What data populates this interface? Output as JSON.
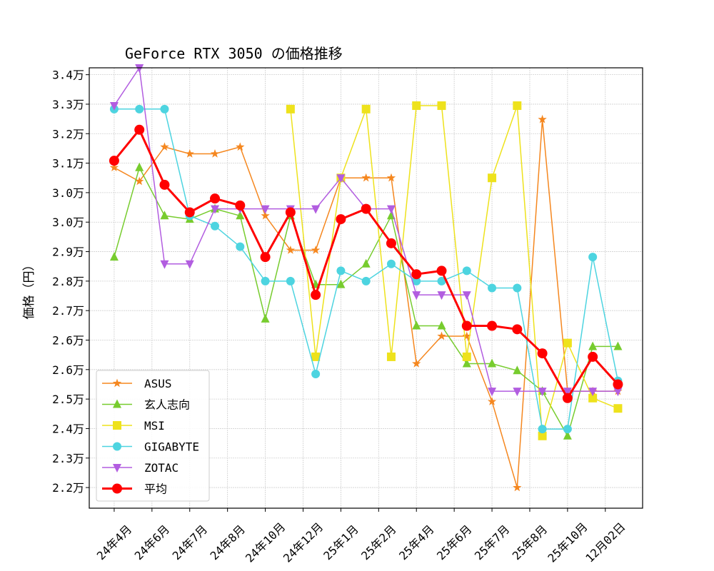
{
  "chart_data": {
    "type": "line",
    "title": "GeForce RTX 3050 の価格推移",
    "xlabel": "",
    "ylabel": "価格（円）",
    "categories_ticks": [
      "24年4月",
      "24年6月",
      "24年7月",
      "24年8月",
      "24年10月",
      "24年12月",
      "25年1月",
      "25年2月",
      "25年4月",
      "25年6月",
      "25年7月",
      "25年8月",
      "25年10月",
      "12月02日"
    ],
    "point_count": 21,
    "yticks": [
      "3.4万",
      "3.3万",
      "3.2万",
      "3.1万",
      "3.0万",
      "3.0万",
      "2.9万",
      "2.8万",
      "2.7万",
      "2.6万",
      "2.6万",
      "2.5万",
      "2.4万",
      "2.3万",
      "2.2万"
    ],
    "ytick_range": [
      34000,
      22000
    ],
    "ylim": [
      21400,
      34200
    ],
    "grid": true,
    "legend_position": "lower-left",
    "series": [
      {
        "name": "ASUS",
        "color": "#f5871f",
        "marker": "star",
        "values": [
          31300,
          30900,
          31900,
          31700,
          31700,
          31900,
          29900,
          28900,
          28900,
          31000,
          31000,
          31000,
          25600,
          26400,
          26400,
          24500,
          22000,
          32700,
          24800,
          24800,
          24800
        ]
      },
      {
        "name": "玄人志向",
        "color": "#77cc2e",
        "marker": "triangle-up",
        "values": [
          28700,
          31300,
          29900,
          29800,
          30100,
          29900,
          26900,
          29900,
          27900,
          27900,
          28500,
          29900,
          26700,
          26700,
          25600,
          25600,
          25400,
          24800,
          23500,
          26100,
          26100
        ]
      },
      {
        "name": "MSI",
        "color": "#eee21c",
        "marker": "square",
        "values": [
          null,
          null,
          null,
          null,
          null,
          null,
          null,
          33000,
          25800,
          31000,
          33000,
          25800,
          33100,
          33100,
          25800,
          31000,
          33100,
          23500,
          26200,
          24600,
          24300
        ]
      },
      {
        "name": "GIGABYTE",
        "color": "#4dd4e0",
        "marker": "circle",
        "values": [
          33000,
          33000,
          33000,
          29900,
          29600,
          29000,
          28000,
          28000,
          25300,
          28300,
          28000,
          28500,
          28000,
          28000,
          28300,
          27800,
          27800,
          23700,
          23700,
          28700,
          25100
        ]
      },
      {
        "name": "ZOTAC",
        "color": "#b25de0",
        "marker": "triangle-down",
        "values": [
          33100,
          34200,
          28500,
          28500,
          30100,
          30100,
          30100,
          30100,
          30100,
          31000,
          30100,
          30100,
          27600,
          27600,
          27600,
          24800,
          24800,
          24800,
          24800,
          24800,
          24800
        ]
      },
      {
        "name": "平均",
        "color": "#ff0000",
        "marker": "circle",
        "thick": true,
        "values": [
          31500,
          32400,
          30800,
          30000,
          30400,
          30200,
          28700,
          30000,
          27600,
          29800,
          30100,
          29100,
          28200,
          28300,
          26700,
          26700,
          26600,
          25900,
          24600,
          25800,
          25000
        ]
      }
    ]
  }
}
